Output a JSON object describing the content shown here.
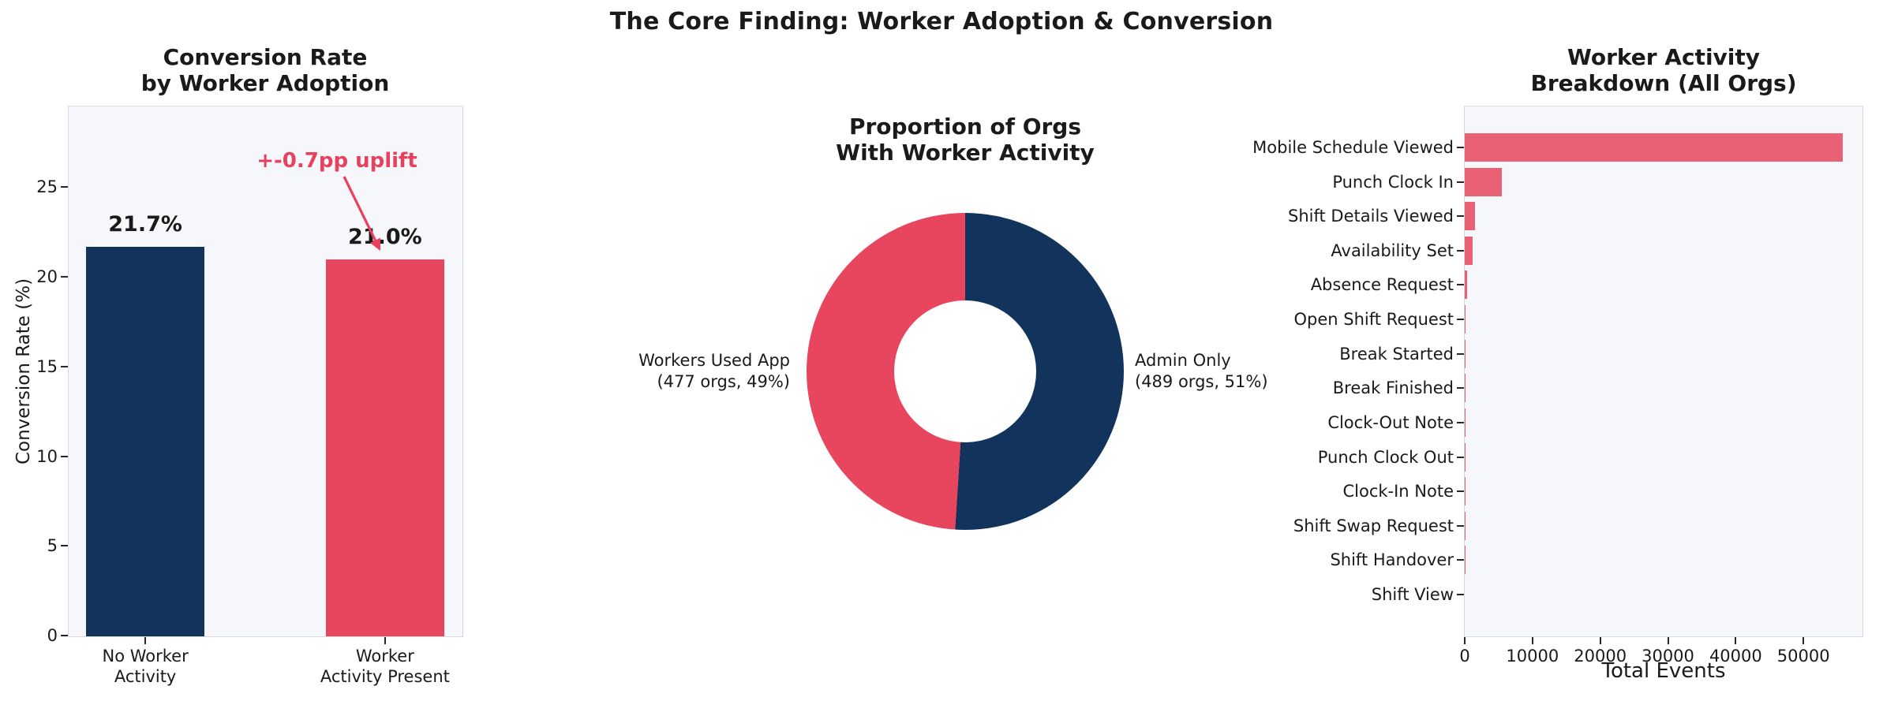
{
  "figure": {
    "title": "The Core Finding: Worker Adoption & Conversion"
  },
  "colors": {
    "navy": "#12345c",
    "pink": "#e8455e",
    "pink_light": "#e96175",
    "annotation_pink": "#e8415f",
    "plot_bg": "#f6f7fa",
    "plot_border": "#d9dbe0",
    "tick": "#262626"
  },
  "chart_data": [
    {
      "type": "bar",
      "title_lines": [
        "Conversion Rate",
        "by Worker Adoption"
      ],
      "ylabel": "Conversion Rate (%)",
      "categories": [
        [
          "No Worker",
          "Activity"
        ],
        [
          "Worker",
          "Activity Present"
        ]
      ],
      "values": [
        21.7,
        21.0
      ],
      "value_labels": [
        "21.7%",
        "21.0%"
      ],
      "bar_colors": [
        "#12345c",
        "#e8455e"
      ],
      "yticks": [
        0,
        5,
        10,
        15,
        20,
        25
      ],
      "ylim": [
        0,
        29.5
      ],
      "grid": false,
      "annotation": {
        "text": "+-0.7pp uplift"
      }
    },
    {
      "type": "pie",
      "donut": true,
      "start_angle_deg": 90,
      "title_lines": [
        "Proportion of Orgs",
        "With Worker Activity"
      ],
      "slices": [
        {
          "label_lines": [
            "Admin Only",
            "(489 orgs, 51%)"
          ],
          "orgs": 489,
          "pct": 51,
          "color": "#12345c",
          "side": "right"
        },
        {
          "label_lines": [
            "Workers Used App",
            "(477 orgs, 49%)"
          ],
          "orgs": 477,
          "pct": 49,
          "color": "#e8455e",
          "side": "left"
        }
      ]
    },
    {
      "type": "bar",
      "orientation": "horizontal",
      "title_lines": [
        "Worker Activity",
        "Breakdown (All Orgs)"
      ],
      "xlabel": "Total Events",
      "categories": [
        "Mobile Schedule Viewed",
        "Punch Clock In",
        "Shift Details Viewed",
        "Availability Set",
        "Absence Request",
        "Open Shift Request",
        "Break Started",
        "Break Finished",
        "Clock-Out Note",
        "Punch Clock Out",
        "Clock-In Note",
        "Shift Swap Request",
        "Shift Handover",
        "Shift View"
      ],
      "values": [
        55800,
        5500,
        1500,
        1150,
        350,
        170,
        100,
        80,
        50,
        40,
        30,
        20,
        10,
        5
      ],
      "bar_color": "#e96175",
      "xticks": [
        0,
        10000,
        20000,
        30000,
        40000,
        50000
      ],
      "xlim": [
        0,
        58600
      ],
      "grid": false
    }
  ]
}
